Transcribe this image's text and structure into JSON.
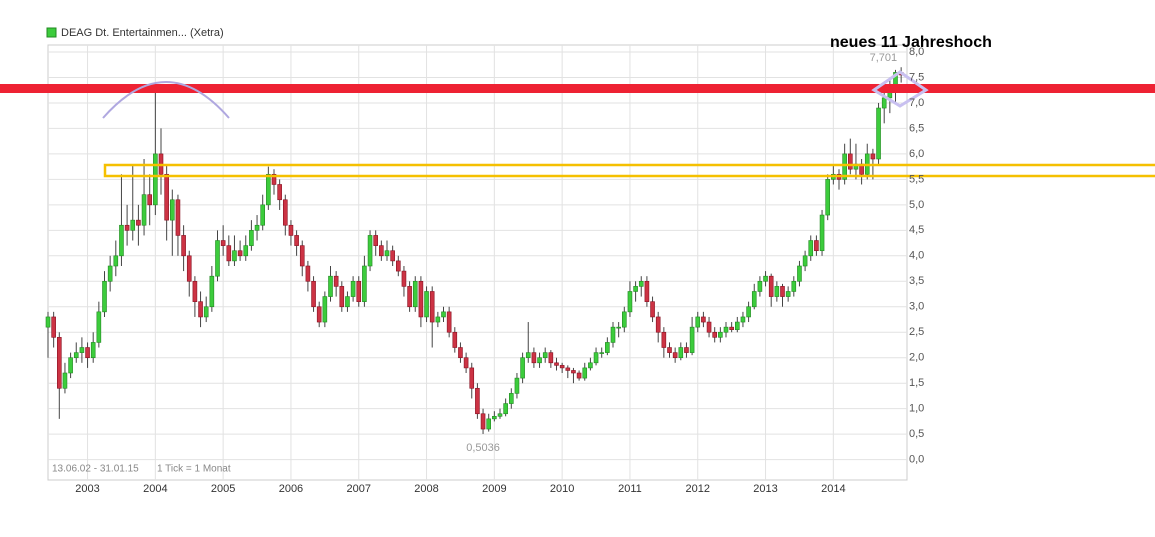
{
  "chart_data": {
    "type": "candlestick",
    "title": "neues 11 Jahreshoch",
    "date_range": "13.06.02 - 31.01.15",
    "tick_note": "1 Tick = 1 Monat",
    "categories": [
      null,
      null,
      null,
      null,
      null,
      null,
      null,
      "2003",
      null,
      null,
      null,
      null,
      null,
      null,
      null,
      null,
      null,
      null,
      null,
      "2004",
      null,
      null,
      null,
      null,
      null,
      null,
      null,
      null,
      null,
      null,
      null,
      "2005",
      null,
      null,
      null,
      null,
      null,
      null,
      null,
      null,
      null,
      null,
      null,
      "2006",
      null,
      null,
      null,
      null,
      null,
      null,
      null,
      null,
      null,
      null,
      null,
      "2007",
      null,
      null,
      null,
      null,
      null,
      null,
      null,
      null,
      null,
      null,
      null,
      "2008",
      null,
      null,
      null,
      null,
      null,
      null,
      null,
      null,
      null,
      null,
      null,
      "2009",
      null,
      null,
      null,
      null,
      null,
      null,
      null,
      null,
      null,
      null,
      null,
      "2010",
      null,
      null,
      null,
      null,
      null,
      null,
      null,
      null,
      null,
      null,
      null,
      "2011",
      null,
      null,
      null,
      null,
      null,
      null,
      null,
      null,
      null,
      null,
      null,
      "2012",
      null,
      null,
      null,
      null,
      null,
      null,
      null,
      null,
      null,
      null,
      null,
      "2013",
      null,
      null,
      null,
      null,
      null,
      null,
      null,
      null,
      null,
      null,
      null,
      "2014",
      null,
      null,
      null,
      null,
      null,
      null,
      null,
      null,
      null,
      null,
      null,
      null
    ],
    "series": [
      {
        "name": "DEAG Dt. Entertainmen... (Xetra)",
        "color": "#3ccc3c",
        "down_color": "#cc3344",
        "ohlc": [
          [
            2.6,
            2.9,
            2.0,
            2.8
          ],
          [
            2.8,
            2.9,
            2.2,
            2.4
          ],
          [
            2.4,
            2.5,
            0.8,
            1.4
          ],
          [
            1.4,
            1.9,
            1.3,
            1.7
          ],
          [
            1.7,
            2.1,
            1.6,
            2.0
          ],
          [
            2.0,
            2.3,
            1.9,
            2.1
          ],
          [
            2.1,
            2.4,
            1.9,
            2.2
          ],
          [
            2.2,
            2.3,
            1.8,
            2.0
          ],
          [
            2.0,
            2.5,
            1.9,
            2.3
          ],
          [
            2.3,
            3.1,
            2.2,
            2.9
          ],
          [
            2.9,
            3.7,
            2.8,
            3.5
          ],
          [
            3.5,
            4.0,
            3.3,
            3.8
          ],
          [
            3.8,
            4.3,
            3.6,
            4.0
          ],
          [
            4.0,
            5.6,
            3.8,
            4.6
          ],
          [
            4.6,
            5.0,
            4.2,
            4.5
          ],
          [
            4.5,
            5.8,
            4.3,
            4.7
          ],
          [
            4.7,
            5.0,
            4.2,
            4.6
          ],
          [
            4.6,
            5.9,
            4.4,
            5.2
          ],
          [
            5.2,
            5.6,
            4.6,
            5.0
          ],
          [
            5.0,
            7.3,
            4.8,
            6.0
          ],
          [
            6.0,
            6.5,
            5.2,
            5.6
          ],
          [
            5.6,
            5.8,
            4.3,
            4.7
          ],
          [
            4.7,
            5.3,
            4.0,
            5.1
          ],
          [
            5.1,
            5.2,
            4.0,
            4.4
          ],
          [
            4.4,
            4.6,
            3.7,
            4.0
          ],
          [
            4.0,
            4.1,
            3.2,
            3.5
          ],
          [
            3.5,
            3.6,
            2.8,
            3.1
          ],
          [
            3.1,
            3.3,
            2.6,
            2.8
          ],
          [
            2.8,
            3.2,
            2.7,
            3.0
          ],
          [
            3.0,
            3.8,
            2.9,
            3.6
          ],
          [
            3.6,
            4.5,
            3.5,
            4.3
          ],
          [
            4.3,
            4.6,
            4.0,
            4.2
          ],
          [
            4.2,
            4.4,
            3.8,
            3.9
          ],
          [
            3.9,
            4.4,
            3.8,
            4.1
          ],
          [
            4.1,
            4.3,
            3.9,
            4.0
          ],
          [
            4.0,
            4.4,
            3.9,
            4.2
          ],
          [
            4.2,
            4.7,
            4.1,
            4.5
          ],
          [
            4.5,
            4.8,
            4.3,
            4.6
          ],
          [
            4.6,
            5.2,
            4.5,
            5.0
          ],
          [
            5.0,
            5.75,
            4.9,
            5.6
          ],
          [
            5.6,
            5.7,
            5.2,
            5.4
          ],
          [
            5.4,
            5.5,
            4.9,
            5.1
          ],
          [
            5.1,
            5.2,
            4.4,
            4.6
          ],
          [
            4.6,
            4.7,
            4.2,
            4.4
          ],
          [
            4.4,
            4.5,
            4.0,
            4.2
          ],
          [
            4.2,
            4.3,
            3.6,
            3.8
          ],
          [
            3.8,
            3.9,
            3.3,
            3.5
          ],
          [
            3.5,
            3.6,
            2.9,
            3.0
          ],
          [
            3.0,
            3.1,
            2.6,
            2.7
          ],
          [
            2.7,
            3.3,
            2.6,
            3.2
          ],
          [
            3.2,
            3.8,
            3.1,
            3.6
          ],
          [
            3.6,
            3.7,
            3.2,
            3.4
          ],
          [
            3.4,
            3.5,
            2.9,
            3.0
          ],
          [
            3.0,
            3.3,
            2.9,
            3.2
          ],
          [
            3.2,
            3.6,
            3.1,
            3.5
          ],
          [
            3.5,
            3.6,
            3.0,
            3.1
          ],
          [
            3.1,
            4.0,
            3.0,
            3.8
          ],
          [
            3.8,
            4.5,
            3.7,
            4.4
          ],
          [
            4.4,
            4.5,
            4.0,
            4.2
          ],
          [
            4.2,
            4.3,
            3.9,
            4.0
          ],
          [
            4.0,
            4.3,
            3.9,
            4.1
          ],
          [
            4.1,
            4.2,
            3.8,
            3.9
          ],
          [
            3.9,
            4.0,
            3.6,
            3.7
          ],
          [
            3.7,
            3.8,
            3.2,
            3.4
          ],
          [
            3.4,
            3.5,
            2.9,
            3.0
          ],
          [
            3.0,
            3.6,
            2.9,
            3.5
          ],
          [
            3.5,
            3.6,
            2.6,
            2.8
          ],
          [
            2.8,
            3.4,
            2.7,
            3.3
          ],
          [
            3.3,
            3.4,
            2.2,
            2.7
          ],
          [
            2.7,
            2.9,
            2.6,
            2.8
          ],
          [
            2.8,
            3.0,
            2.7,
            2.9
          ],
          [
            2.9,
            3.0,
            2.4,
            2.5
          ],
          [
            2.5,
            2.6,
            2.1,
            2.2
          ],
          [
            2.2,
            2.3,
            1.9,
            2.0
          ],
          [
            2.0,
            2.1,
            1.7,
            1.8
          ],
          [
            1.8,
            1.9,
            1.2,
            1.4
          ],
          [
            1.4,
            1.5,
            0.8,
            0.9
          ],
          [
            0.9,
            1.0,
            0.5036,
            0.6
          ],
          [
            0.6,
            0.9,
            0.55,
            0.8
          ],
          [
            0.8,
            0.95,
            0.75,
            0.85
          ],
          [
            0.85,
            1.0,
            0.8,
            0.9
          ],
          [
            0.9,
            1.2,
            0.85,
            1.1
          ],
          [
            1.1,
            1.4,
            1.0,
            1.3
          ],
          [
            1.3,
            1.7,
            1.2,
            1.6
          ],
          [
            1.6,
            2.1,
            1.5,
            2.0
          ],
          [
            2.0,
            2.7,
            1.9,
            2.1
          ],
          [
            2.1,
            2.2,
            1.8,
            1.9
          ],
          [
            1.9,
            2.1,
            1.8,
            2.0
          ],
          [
            2.0,
            2.2,
            1.9,
            2.1
          ],
          [
            2.1,
            2.15,
            1.8,
            1.9
          ],
          [
            1.9,
            2.0,
            1.75,
            1.85
          ],
          [
            1.85,
            1.9,
            1.7,
            1.8
          ],
          [
            1.8,
            1.85,
            1.6,
            1.75
          ],
          [
            1.75,
            1.8,
            1.5,
            1.7
          ],
          [
            1.7,
            1.75,
            1.55,
            1.6
          ],
          [
            1.6,
            1.9,
            1.55,
            1.8
          ],
          [
            1.8,
            2.0,
            1.75,
            1.9
          ],
          [
            1.9,
            2.2,
            1.85,
            2.1
          ],
          [
            2.1,
            2.2,
            2.0,
            2.1
          ],
          [
            2.1,
            2.4,
            2.05,
            2.3
          ],
          [
            2.3,
            2.7,
            2.2,
            2.6
          ],
          [
            2.6,
            2.7,
            2.4,
            2.6
          ],
          [
            2.6,
            3.0,
            2.5,
            2.9
          ],
          [
            2.9,
            3.5,
            2.8,
            3.3
          ],
          [
            3.3,
            3.5,
            3.1,
            3.4
          ],
          [
            3.4,
            3.6,
            3.2,
            3.5
          ],
          [
            3.5,
            3.6,
            3.0,
            3.1
          ],
          [
            3.1,
            3.2,
            2.7,
            2.8
          ],
          [
            2.8,
            2.9,
            2.3,
            2.5
          ],
          [
            2.5,
            2.6,
            2.0,
            2.2
          ],
          [
            2.2,
            2.3,
            2.0,
            2.1
          ],
          [
            2.1,
            2.2,
            1.9,
            2.0
          ],
          [
            2.0,
            2.3,
            1.95,
            2.2
          ],
          [
            2.2,
            2.3,
            2.0,
            2.1
          ],
          [
            2.1,
            2.8,
            2.05,
            2.6
          ],
          [
            2.6,
            2.9,
            2.5,
            2.8
          ],
          [
            2.8,
            2.9,
            2.6,
            2.7
          ],
          [
            2.7,
            2.8,
            2.4,
            2.5
          ],
          [
            2.5,
            2.6,
            2.3,
            2.4
          ],
          [
            2.4,
            2.6,
            2.3,
            2.5
          ],
          [
            2.5,
            2.7,
            2.4,
            2.6
          ],
          [
            2.6,
            2.7,
            2.5,
            2.55
          ],
          [
            2.55,
            2.8,
            2.5,
            2.7
          ],
          [
            2.7,
            2.9,
            2.6,
            2.8
          ],
          [
            2.8,
            3.1,
            2.7,
            3.0
          ],
          [
            3.0,
            3.45,
            2.95,
            3.3
          ],
          [
            3.3,
            3.6,
            3.2,
            3.5
          ],
          [
            3.5,
            3.7,
            3.4,
            3.6
          ],
          [
            3.6,
            3.65,
            3.0,
            3.2
          ],
          [
            3.2,
            3.5,
            3.1,
            3.4
          ],
          [
            3.4,
            3.45,
            3.0,
            3.2
          ],
          [
            3.2,
            3.4,
            3.1,
            3.3
          ],
          [
            3.3,
            3.6,
            3.2,
            3.5
          ],
          [
            3.5,
            3.9,
            3.4,
            3.8
          ],
          [
            3.8,
            4.1,
            3.7,
            4.0
          ],
          [
            4.0,
            4.4,
            3.9,
            4.3
          ],
          [
            4.3,
            4.4,
            4.0,
            4.1
          ],
          [
            4.1,
            4.9,
            4.0,
            4.8
          ],
          [
            4.8,
            5.6,
            4.7,
            5.5
          ],
          [
            5.5,
            5.8,
            5.4,
            5.6
          ],
          [
            5.6,
            5.7,
            5.3,
            5.5
          ],
          [
            5.5,
            6.2,
            5.4,
            6.0
          ],
          [
            6.0,
            6.3,
            5.6,
            5.7
          ],
          [
            5.7,
            6.2,
            5.5,
            5.8
          ],
          [
            5.8,
            5.9,
            5.4,
            5.6
          ],
          [
            5.6,
            6.2,
            5.5,
            6.0
          ],
          [
            6.0,
            6.1,
            5.5,
            5.9
          ],
          [
            5.9,
            7.0,
            5.8,
            6.9
          ],
          [
            6.9,
            7.2,
            6.6,
            7.1
          ],
          [
            7.1,
            7.5,
            6.8,
            7.3
          ],
          [
            7.3,
            7.65,
            7.0,
            7.6
          ],
          [
            7.6,
            7.701,
            7.4,
            7.55
          ]
        ]
      }
    ],
    "max_label": {
      "value": 7.701,
      "label": "7,701"
    },
    "min_label": {
      "value": 0.5036,
      "label": "0,5036"
    },
    "ylim": [
      -0.4,
      8.0
    ],
    "yticks": [
      {
        "value": 0,
        "label": "0,0"
      },
      {
        "value": 0.5,
        "label": "0,5"
      },
      {
        "value": 1,
        "label": "1,0"
      },
      {
        "value": 1.5,
        "label": "1,5"
      },
      {
        "value": 2,
        "label": "2,0"
      },
      {
        "value": 2.5,
        "label": "2,5"
      },
      {
        "value": 3,
        "label": "3,0"
      },
      {
        "value": 3.5,
        "label": "3,5"
      },
      {
        "value": 4,
        "label": "4,0"
      },
      {
        "value": 4.5,
        "label": "4,5"
      },
      {
        "value": 5,
        "label": "5,0"
      },
      {
        "value": 5.5,
        "label": "5,5"
      },
      {
        "value": 6,
        "label": "6,0"
      },
      {
        "value": 6.5,
        "label": "6,5"
      },
      {
        "value": 7,
        "label": "7,0"
      },
      {
        "value": 7.5,
        "label": "7,5"
      },
      {
        "value": 8,
        "label": "8,0"
      }
    ],
    "grid": true
  }
}
